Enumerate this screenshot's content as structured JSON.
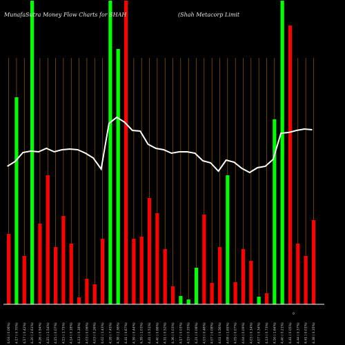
{
  "chart_data": {
    "type": "bar",
    "title_left": "MunafaSutra  Money Flow  Charts for SHAH",
    "title_right": "(Shah Metacorp Limit",
    "bar_color_up": "#00ff00",
    "bar_color_down": "#ff0000",
    "grid_color": "#b36b00",
    "line_color": "#ffffff",
    "baseline_color": "#ffffff",
    "bars": [
      {
        "direction": "down",
        "value": 102
      },
      {
        "direction": "up",
        "value": 300
      },
      {
        "direction": "down",
        "value": 70
      },
      {
        "direction": "up",
        "value": 440
      },
      {
        "direction": "down",
        "value": 117
      },
      {
        "direction": "down",
        "value": 187
      },
      {
        "direction": "down",
        "value": 83
      },
      {
        "direction": "down",
        "value": 128
      },
      {
        "direction": "down",
        "value": 88
      },
      {
        "direction": "down",
        "value": 10
      },
      {
        "direction": "down",
        "value": 37
      },
      {
        "direction": "down",
        "value": 29
      },
      {
        "direction": "down",
        "value": 95
      },
      {
        "direction": "up",
        "value": 440
      },
      {
        "direction": "up",
        "value": 370
      },
      {
        "direction": "down",
        "value": 440
      },
      {
        "direction": "down",
        "value": 95
      },
      {
        "direction": "down",
        "value": 98
      },
      {
        "direction": "down",
        "value": 154
      },
      {
        "direction": "down",
        "value": 132
      },
      {
        "direction": "down",
        "value": 80
      },
      {
        "direction": "down",
        "value": 26
      },
      {
        "direction": "up",
        "value": 12
      },
      {
        "direction": "up",
        "value": 7
      },
      {
        "direction": "up",
        "value": 53
      },
      {
        "direction": "down",
        "value": 130
      },
      {
        "direction": "down",
        "value": 31
      },
      {
        "direction": "down",
        "value": 83
      },
      {
        "direction": "up",
        "value": 187
      },
      {
        "direction": "down",
        "value": 32
      },
      {
        "direction": "down",
        "value": 80
      },
      {
        "direction": "down",
        "value": 63
      },
      {
        "direction": "up",
        "value": 11
      },
      {
        "direction": "down",
        "value": 16
      },
      {
        "direction": "up",
        "value": 268
      },
      {
        "direction": "up",
        "value": 440
      },
      {
        "direction": "down",
        "value": 404
      },
      {
        "direction": "down",
        "value": 88
      },
      {
        "direction": "down",
        "value": 70
      },
      {
        "direction": "down",
        "value": 122
      }
    ],
    "line_values": [
      200,
      207,
      220,
      222,
      221,
      226,
      221,
      224,
      225,
      224,
      219,
      212,
      196,
      262,
      271,
      264,
      252,
      251,
      232,
      226,
      224,
      219,
      221,
      221,
      219,
      208,
      205,
      193,
      209,
      206,
      197,
      191,
      198,
      200,
      210,
      248,
      249,
      252,
      254,
      253
    ],
    "value_max": 440,
    "x_labels": [
      "4.04 ( 0.06%)",
      "4.17 ( 0.70%)",
      "4.17 ( 0.42%)",
      "4.20 ( 2.61%)",
      "4.26 ( 0.94%)",
      "4.15 ( 1.54%)",
      "4.15 ( 0.07%)",
      "4.15 ( 1.75%)",
      "4.14 ( 0.18%)",
      "4.13 ( 0.18%)",
      "4.03 ( 0.06%)",
      "4.03 ( 0.26%)",
      "4.02 ( 1.43%)",
      "4.28 ( 7.45%)",
      "4.38 ( 2.36%)",
      "4.41 ( 0.67%)",
      "4.39 ( 0.44%)",
      "4.39 ( 1.03%)",
      "4.41 ( 0.51%)",
      "4.40 ( 0.66%)",
      "4.31 ( 0.52%)",
      "4.36 ( 0.03%)",
      "4.17 ( 0.03%)",
      "4.19 ( 0.35%)",
      "4.21 ( 0.08%)",
      "4.03 ( 0.46%)",
      "4.07 ( 0.08%)",
      "4.01 ( 0.56%)",
      "4.08 ( 1.65%)",
      "4.05 ( 0.07%)",
      "4.04 ( 0.09%)",
      "4.03 ( 0.14%)",
      "4.07 ( 0.34%)",
      "4.13 ( 0.73%)",
      "4.16 ( 1.64%)",
      "4.40 ( 0.21%)",
      "4.41 ( 0.05%)",
      "4.44 ( 0.37%)",
      "4.41 ( 0.01%)",
      "4.38 ( 0.35%)"
    ],
    "extra_label": "0",
    "grid": true,
    "legend": "none"
  }
}
